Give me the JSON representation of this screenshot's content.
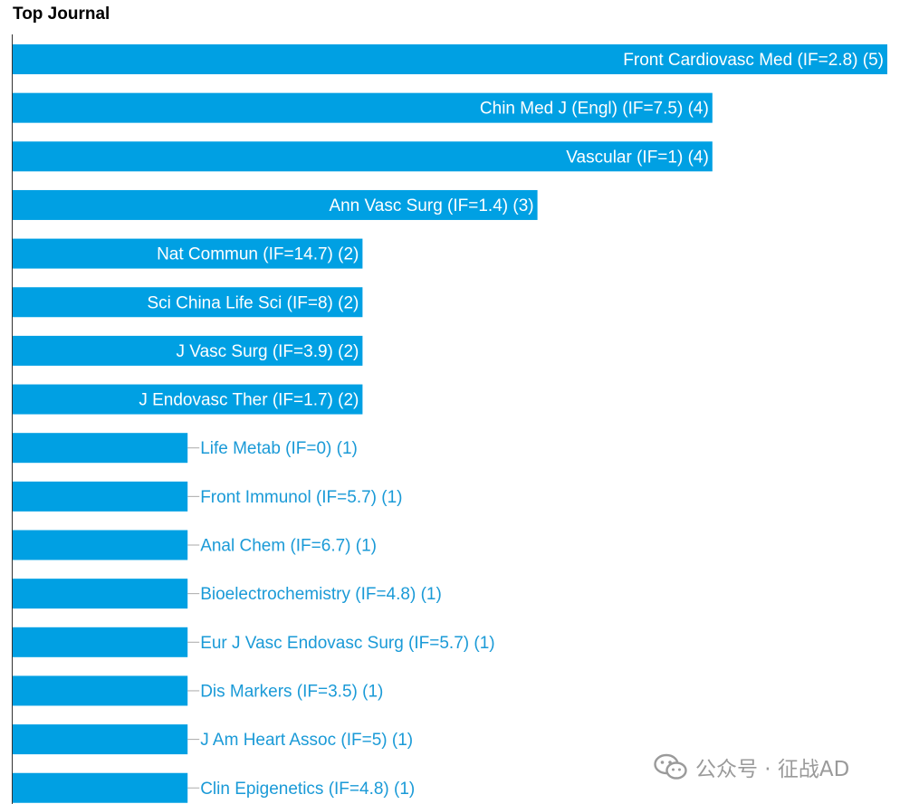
{
  "chart_data": {
    "type": "bar",
    "orientation": "horizontal",
    "title": "Top Journal",
    "categories": [
      "Front Cardiovasc Med (IF=2.8) (5)",
      "Chin Med J (Engl) (IF=7.5) (4)",
      "Vascular (IF=1) (4)",
      "Ann Vasc Surg (IF=1.4) (3)",
      "Nat Commun (IF=14.7) (2)",
      "Sci China Life Sci (IF=8) (2)",
      "J Vasc Surg (IF=3.9) (2)",
      "J Endovasc Ther (IF=1.7) (2)",
      "Life Metab (IF=0) (1)",
      "Front Immunol (IF=5.7) (1)",
      "Anal Chem (IF=6.7) (1)",
      "Bioelectrochemistry (IF=4.8) (1)",
      "Eur J Vasc Endovasc Surg (IF=5.7) (1)",
      "Dis Markers (IF=3.5) (1)",
      "J Am Heart Assoc (IF=5) (1)",
      "Clin Epigenetics (IF=4.8) (1)"
    ],
    "values": [
      5,
      4,
      4,
      3,
      2,
      2,
      2,
      2,
      1,
      1,
      1,
      1,
      1,
      1,
      1,
      1
    ],
    "xlim": [
      0,
      5
    ],
    "grid": false,
    "legend": "none",
    "bar_color": "#00a0e3",
    "label_inside_color": "#ffffff",
    "label_outside_color": "#1a9ad7"
  },
  "watermark": {
    "text": "公众号 · 征战AD",
    "icon": "wechat-icon"
  }
}
